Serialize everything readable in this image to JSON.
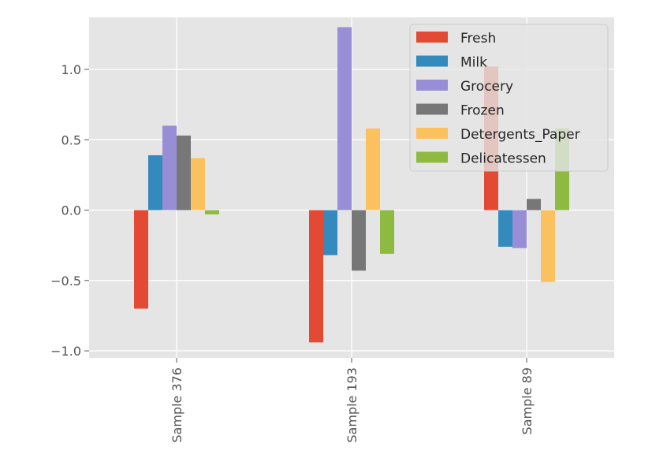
{
  "chart_data": {
    "type": "bar",
    "categories": [
      "Sample 376",
      "Sample 193",
      "Sample 89"
    ],
    "series": [
      {
        "name": "Fresh",
        "color": "#E24A33",
        "values": [
          -0.7,
          -0.94,
          1.02
        ]
      },
      {
        "name": "Milk",
        "color": "#348ABD",
        "values": [
          0.39,
          -0.32,
          -0.26
        ]
      },
      {
        "name": "Grocery",
        "color": "#988ED5",
        "values": [
          0.6,
          1.3,
          -0.27
        ]
      },
      {
        "name": "Frozen",
        "color": "#777777",
        "values": [
          0.53,
          -0.43,
          0.08
        ]
      },
      {
        "name": "Detergents_Paper",
        "color": "#FBC15E",
        "values": [
          0.37,
          0.58,
          -0.51
        ]
      },
      {
        "name": "Delicatessen",
        "color": "#8EBA42",
        "values": [
          -0.03,
          -0.31,
          0.58
        ]
      }
    ],
    "yticks": [
      "1.0",
      "0.5",
      "0.0",
      "−0.5",
      "−1.0"
    ],
    "ylim": [
      -1.05,
      1.37
    ],
    "grid": true,
    "legend_position": "top-right",
    "x_tick_rotation": "vertical",
    "style": "ggplot",
    "background_color": "#E5E5E5",
    "grid_color": "#FFFFFF"
  }
}
